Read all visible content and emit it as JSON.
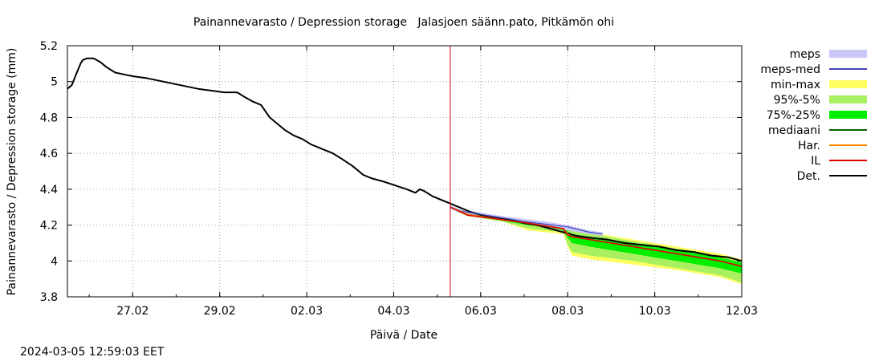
{
  "chart_data": {
    "type": "line",
    "title": "Painannevarasto / Depression storage   Jalasjoen säänn.pato, Pitkämön ohi",
    "xlabel": "Päivä / Date",
    "ylabel": "Painannevarasto / Depression storage (mm)",
    "timestamp": "2024-03-05 12:59:03 EET",
    "x_unit": "days since 2024-02-26 00:00",
    "xlim": [
      0,
      15.5
    ],
    "ylim": [
      3.8,
      5.2
    ],
    "x_ticks": [
      {
        "x": 1.5,
        "label": "27.02"
      },
      {
        "x": 3.5,
        "label": "29.02"
      },
      {
        "x": 5.5,
        "label": "02.03"
      },
      {
        "x": 7.5,
        "label": "04.03"
      },
      {
        "x": 9.5,
        "label": "06.03"
      },
      {
        "x": 11.5,
        "label": "08.03"
      },
      {
        "x": 13.5,
        "label": "10.03"
      },
      {
        "x": 15.5,
        "label": "12.03"
      }
    ],
    "y_ticks": [
      {
        "y": 3.8,
        "label": "3.8"
      },
      {
        "y": 4.0,
        "label": "4"
      },
      {
        "y": 4.2,
        "label": "4.2"
      },
      {
        "y": 4.4,
        "label": "4.4"
      },
      {
        "y": 4.6,
        "label": "4.6"
      },
      {
        "y": 4.8,
        "label": "4.8"
      },
      {
        "y": 5.0,
        "label": "5"
      },
      {
        "y": 5.2,
        "label": "5.2"
      }
    ],
    "forecast_start_x": 8.8,
    "legend": [
      {
        "label": "meps",
        "color": "#c8c8f8",
        "kind": "band"
      },
      {
        "label": "meps-med",
        "color": "#4444bb",
        "kind": "line"
      },
      {
        "label": "min-max",
        "color": "#ffff60",
        "kind": "band"
      },
      {
        "label": "95%-5%",
        "color": "#a8f060",
        "kind": "band"
      },
      {
        "label": "75%-25%",
        "color": "#00ee00",
        "kind": "band"
      },
      {
        "label": "mediaani",
        "color": "#006600",
        "kind": "line"
      },
      {
        "label": "Har.",
        "color": "#ff8800",
        "kind": "line"
      },
      {
        "label": "IL",
        "color": "#dd0000",
        "kind": "line"
      },
      {
        "label": "Det.",
        "color": "#000000",
        "kind": "line"
      }
    ],
    "series": [
      {
        "name": "Det.",
        "x": [
          0,
          0.1,
          0.2,
          0.3,
          0.35,
          0.45,
          0.6,
          0.75,
          0.9,
          1.1,
          1.3,
          1.5,
          1.8,
          2.2,
          2.6,
          3.0,
          3.3,
          3.6,
          3.9,
          4.1,
          4.25,
          4.45,
          4.65,
          4.85,
          5.0,
          5.2,
          5.4,
          5.6,
          5.9,
          6.1,
          6.3,
          6.55,
          6.8,
          7.0,
          7.3,
          7.55,
          7.8,
          8.0,
          8.1,
          8.2,
          8.4,
          8.6,
          8.8,
          9.0,
          9.3,
          9.6,
          9.9,
          10.2,
          10.5,
          10.8,
          11.1,
          11.4,
          11.7,
          12.0,
          12.4,
          12.8,
          13.2,
          13.6,
          14.0,
          14.4,
          14.8,
          15.2,
          15.5
        ],
        "y": [
          4.96,
          4.98,
          5.04,
          5.1,
          5.12,
          5.13,
          5.13,
          5.11,
          5.08,
          5.05,
          5.04,
          5.03,
          5.02,
          5.0,
          4.98,
          4.96,
          4.95,
          4.94,
          4.94,
          4.91,
          4.89,
          4.87,
          4.8,
          4.76,
          4.73,
          4.7,
          4.68,
          4.65,
          4.62,
          4.6,
          4.57,
          4.53,
          4.48,
          4.46,
          4.44,
          4.42,
          4.4,
          4.38,
          4.4,
          4.39,
          4.36,
          4.34,
          4.32,
          4.3,
          4.27,
          4.25,
          4.24,
          4.23,
          4.21,
          4.2,
          4.18,
          4.16,
          4.14,
          4.13,
          4.12,
          4.1,
          4.09,
          4.08,
          4.06,
          4.05,
          4.03,
          4.02,
          4.0
        ]
      },
      {
        "name": "meps",
        "x": [
          8.8,
          9.0,
          9.5,
          10.0,
          10.5,
          11.0,
          11.5,
          12.0,
          12.3
        ],
        "low": [
          4.29,
          4.27,
          4.25,
          4.23,
          4.21,
          4.19,
          4.17,
          4.15,
          4.14
        ],
        "high": [
          4.31,
          4.29,
          4.27,
          4.25,
          4.235,
          4.22,
          4.2,
          4.17,
          4.16
        ]
      },
      {
        "name": "meps-med",
        "x": [
          8.8,
          9.0,
          9.5,
          10.0,
          10.5,
          11.0,
          11.5,
          12.0,
          12.3
        ],
        "y": [
          4.3,
          4.28,
          4.26,
          4.24,
          4.22,
          4.205,
          4.19,
          4.16,
          4.15
        ]
      },
      {
        "name": "min-max",
        "x": [
          8.8,
          9.2,
          10.0,
          10.6,
          11.0,
          11.4,
          11.5,
          11.6,
          12.0,
          13.0,
          14.0,
          15.0,
          15.5
        ],
        "low": [
          4.29,
          4.25,
          4.22,
          4.17,
          4.16,
          4.15,
          4.08,
          4.03,
          4.01,
          3.98,
          3.95,
          3.91,
          3.87
        ],
        "high": [
          4.3,
          4.27,
          4.245,
          4.23,
          4.215,
          4.2,
          4.19,
          4.18,
          4.16,
          4.12,
          4.08,
          4.04,
          4.01
        ]
      },
      {
        "name": "95%-5%",
        "x": [
          8.8,
          9.2,
          10.0,
          10.6,
          11.0,
          11.4,
          11.5,
          11.6,
          12.0,
          13.0,
          14.0,
          15.0,
          15.5
        ],
        "low": [
          4.29,
          4.25,
          4.22,
          4.18,
          4.17,
          4.16,
          4.09,
          4.05,
          4.03,
          4.0,
          3.96,
          3.92,
          3.88
        ],
        "high": [
          4.3,
          4.265,
          4.24,
          4.225,
          4.21,
          4.2,
          4.185,
          4.175,
          4.155,
          4.11,
          4.07,
          4.03,
          4.0
        ]
      },
      {
        "name": "75%-25%",
        "x": [
          8.8,
          9.2,
          10.0,
          10.6,
          11.0,
          11.4,
          11.5,
          11.6,
          12.0,
          13.0,
          14.0,
          15.0,
          15.5
        ],
        "low": [
          4.295,
          4.255,
          4.225,
          4.2,
          4.19,
          4.17,
          4.13,
          4.1,
          4.08,
          4.04,
          4.0,
          3.96,
          3.93
        ],
        "high": [
          4.3,
          4.26,
          4.235,
          4.22,
          4.205,
          4.19,
          4.165,
          4.15,
          4.135,
          4.1,
          4.06,
          4.02,
          3.99
        ]
      },
      {
        "name": "mediaani",
        "x": [
          8.8,
          9.2,
          10.0,
          10.6,
          11.0,
          11.4,
          11.5,
          11.6,
          12.0,
          13.0,
          14.0,
          15.0,
          15.5
        ],
        "y": [
          4.3,
          4.26,
          4.23,
          4.21,
          4.195,
          4.18,
          4.15,
          4.135,
          4.12,
          4.08,
          4.04,
          4.0,
          3.97
        ]
      },
      {
        "name": "Har.",
        "x": [
          8.8,
          9.2,
          10.0,
          10.6,
          11.0,
          11.4,
          11.5,
          11.6,
          12.0,
          13.0,
          14.0,
          15.0,
          15.5
        ],
        "y": [
          4.3,
          4.26,
          4.23,
          4.21,
          4.195,
          4.18,
          4.15,
          4.135,
          4.12,
          4.08,
          4.04,
          4.0,
          3.97
        ]
      },
      {
        "name": "IL",
        "x": [
          8.8,
          9.2,
          10.0,
          10.6,
          11.0,
          11.4,
          11.5,
          11.6,
          12.0,
          13.0,
          14.0,
          15.0,
          15.5
        ],
        "y": [
          4.3,
          4.255,
          4.23,
          4.21,
          4.195,
          4.18,
          4.145,
          4.135,
          4.12,
          4.08,
          4.04,
          4.0,
          3.97
        ]
      }
    ]
  }
}
